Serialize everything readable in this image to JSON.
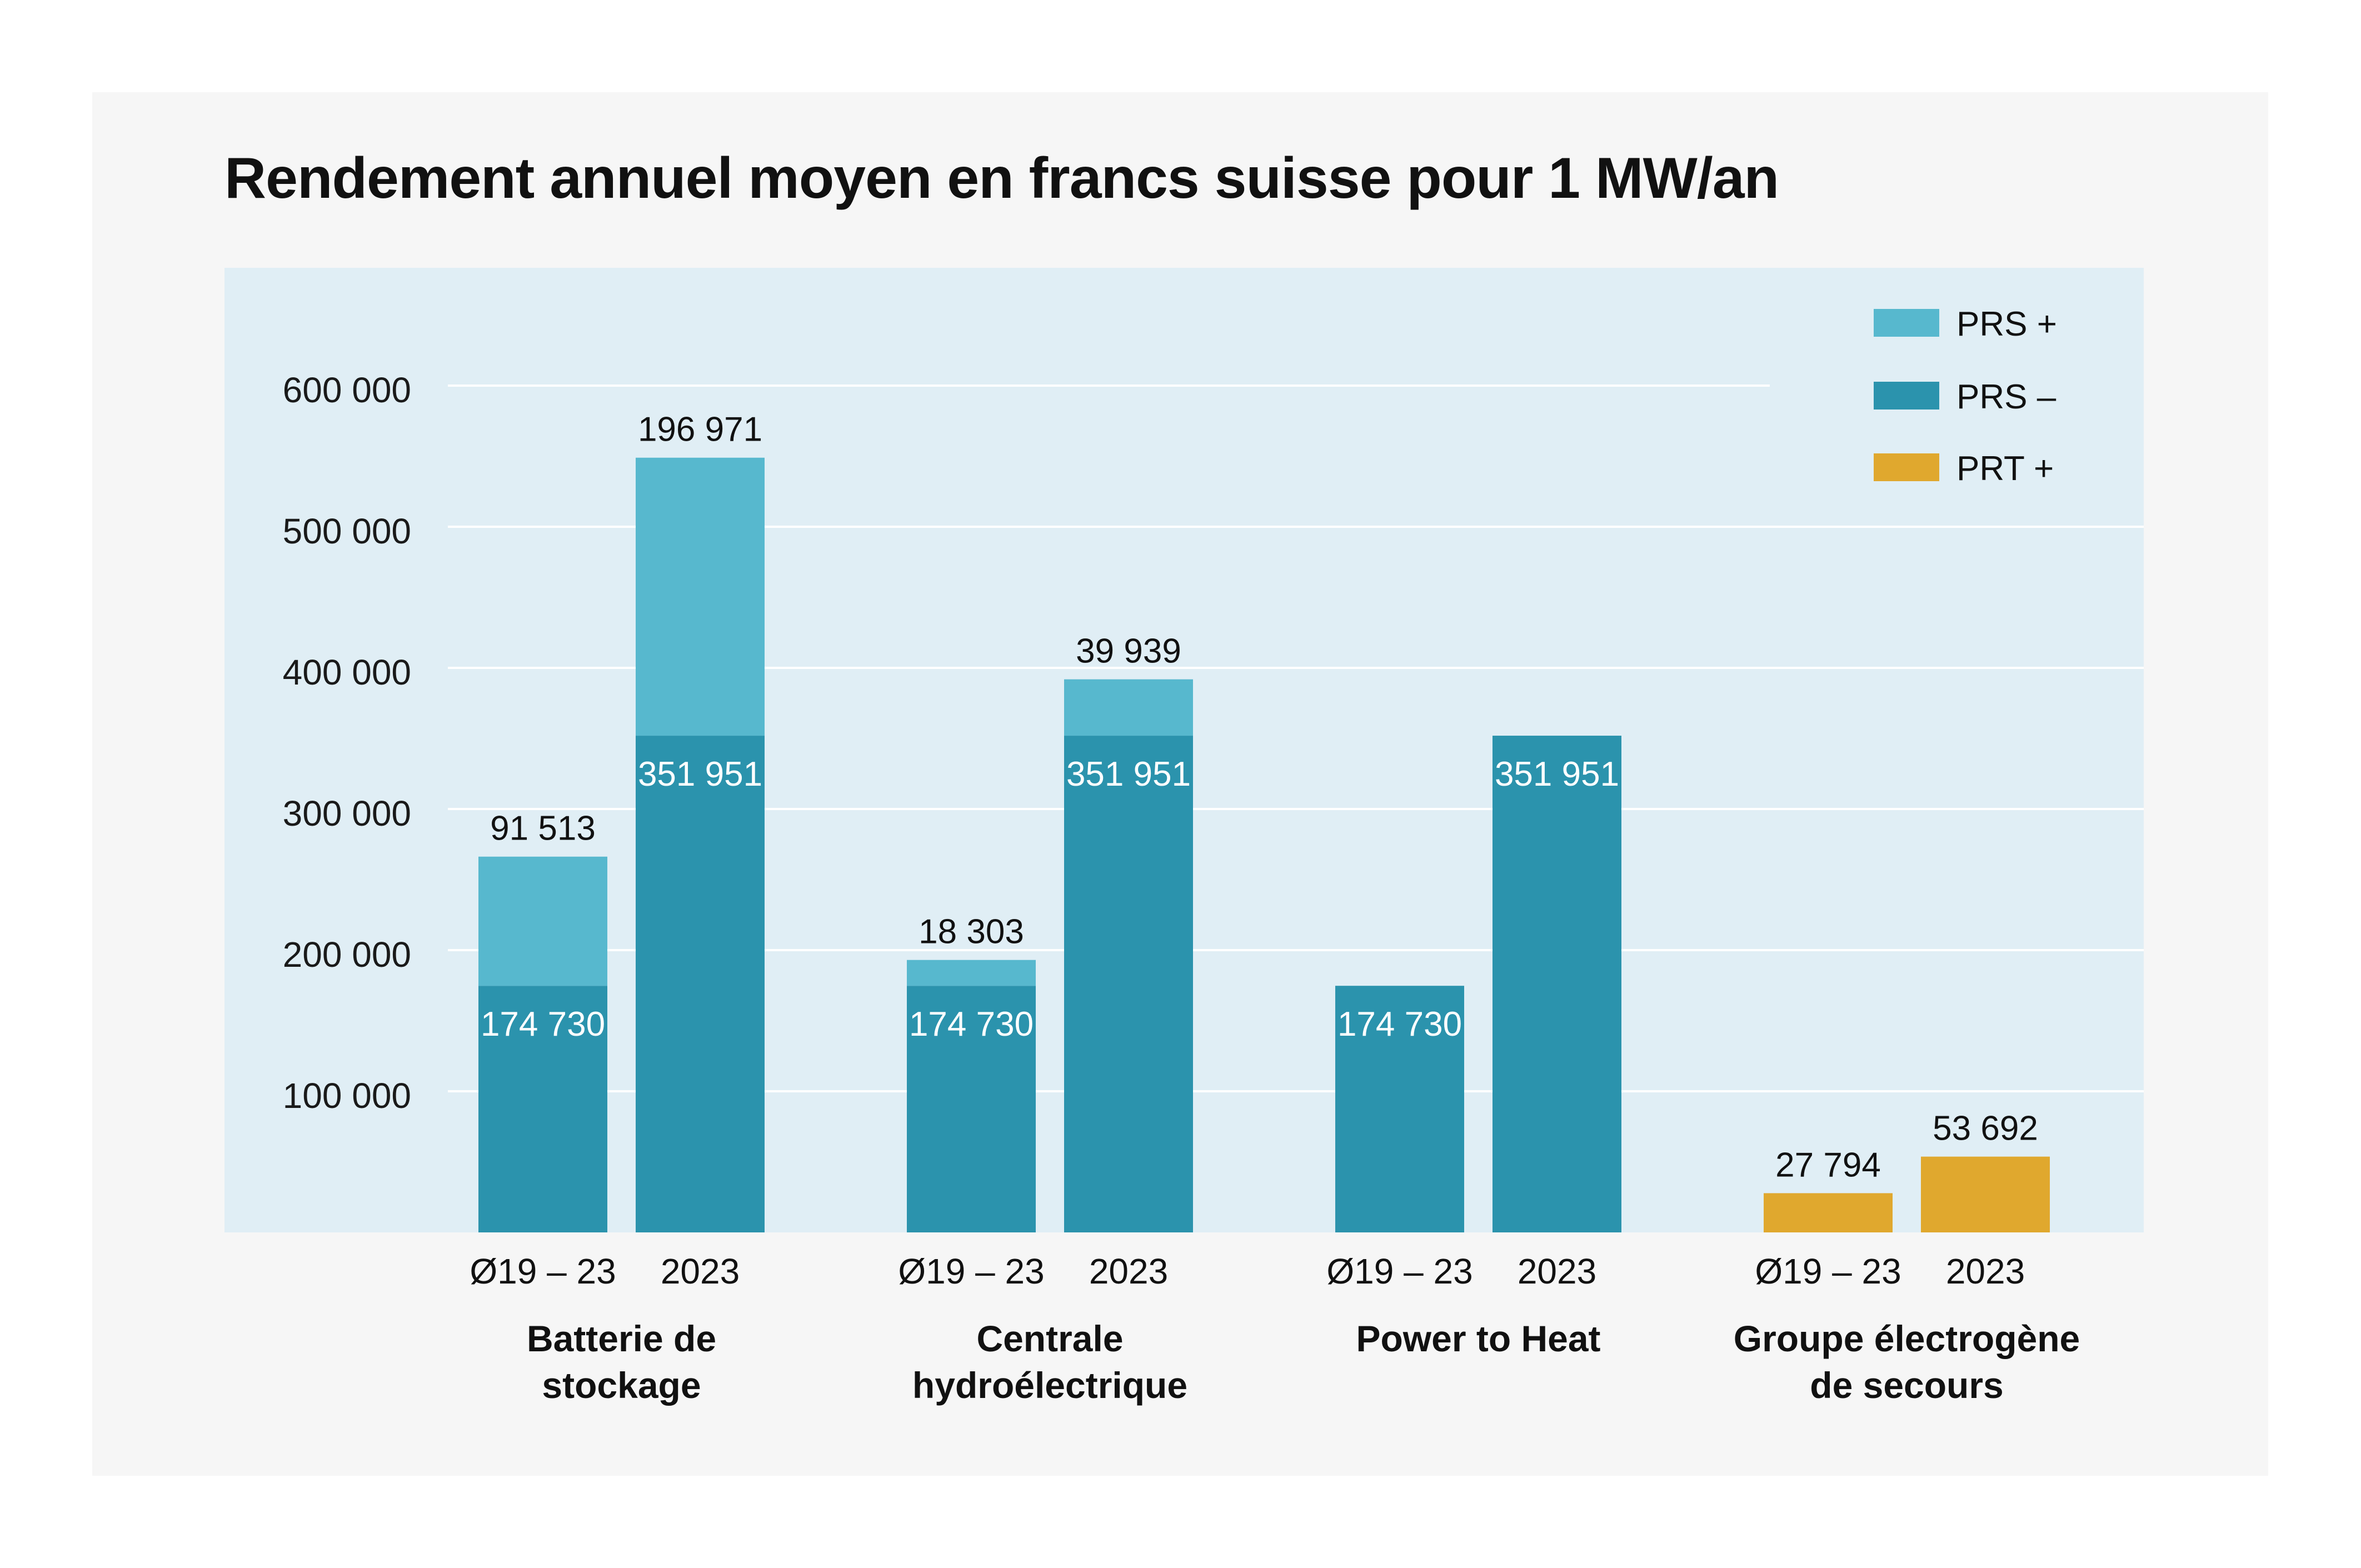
{
  "title": "Rendement annuel moyen en francs suisse pour 1 MW/an",
  "colors": {
    "prs_plus": "#57b8ce",
    "prs_minus": "#2b93ad",
    "prt_plus": "#e0a82e",
    "plot_bg": "#e0eef5",
    "card_bg": "#f6f6f6"
  },
  "chart_data": {
    "type": "bar",
    "stacked": true,
    "title": "Rendement annuel moyen en francs suisse pour 1 MW/an",
    "ylim": [
      0,
      670000
    ],
    "yticks": [
      100000,
      200000,
      300000,
      400000,
      500000,
      600000
    ],
    "ytick_labels": [
      "100 000",
      "200 000",
      "300 000",
      "400 000",
      "500 000",
      "600 000"
    ],
    "grid": true,
    "legend_position": "top-right",
    "legend": [
      {
        "name": "PRS +",
        "color": "#57b8ce"
      },
      {
        "name": "PRS –",
        "color": "#2b93ad"
      },
      {
        "name": "PRT +",
        "color": "#e0a82e"
      }
    ],
    "groups": [
      {
        "label_lines": [
          "Batterie de",
          "stockage"
        ],
        "bars": [
          {
            "label": "Ø19 – 23",
            "segments": [
              {
                "series": "PRS –",
                "value": 174730,
                "label": "174 730"
              },
              {
                "series": "PRS +",
                "value": 91513,
                "label": "91 513"
              }
            ]
          },
          {
            "label": "2023",
            "segments": [
              {
                "series": "PRS –",
                "value": 351951,
                "label": "351 951"
              },
              {
                "series": "PRS +",
                "value": 196971,
                "label": "196 971"
              }
            ]
          }
        ]
      },
      {
        "label_lines": [
          "Centrale",
          "hydroélectrique"
        ],
        "bars": [
          {
            "label": "Ø19 – 23",
            "segments": [
              {
                "series": "PRS –",
                "value": 174730,
                "label": "174 730"
              },
              {
                "series": "PRS +",
                "value": 18303,
                "label": "18 303"
              }
            ]
          },
          {
            "label": "2023",
            "segments": [
              {
                "series": "PRS –",
                "value": 351951,
                "label": "351 951"
              },
              {
                "series": "PRS +",
                "value": 39939,
                "label": "39 939"
              }
            ]
          }
        ]
      },
      {
        "label_lines": [
          "Power to Heat"
        ],
        "bars": [
          {
            "label": "Ø19 – 23",
            "segments": [
              {
                "series": "PRS –",
                "value": 174730,
                "label": "174 730"
              }
            ]
          },
          {
            "label": "2023",
            "segments": [
              {
                "series": "PRS –",
                "value": 351951,
                "label": "351 951"
              }
            ]
          }
        ]
      },
      {
        "label_lines": [
          "Groupe électrogène",
          "de secours"
        ],
        "bars": [
          {
            "label": "Ø19 – 23",
            "segments": [
              {
                "series": "PRT +",
                "value": 27794,
                "label": "27 794"
              }
            ]
          },
          {
            "label": "2023",
            "segments": [
              {
                "series": "PRT +",
                "value": 53692,
                "label": "53 692"
              }
            ]
          }
        ]
      }
    ]
  }
}
